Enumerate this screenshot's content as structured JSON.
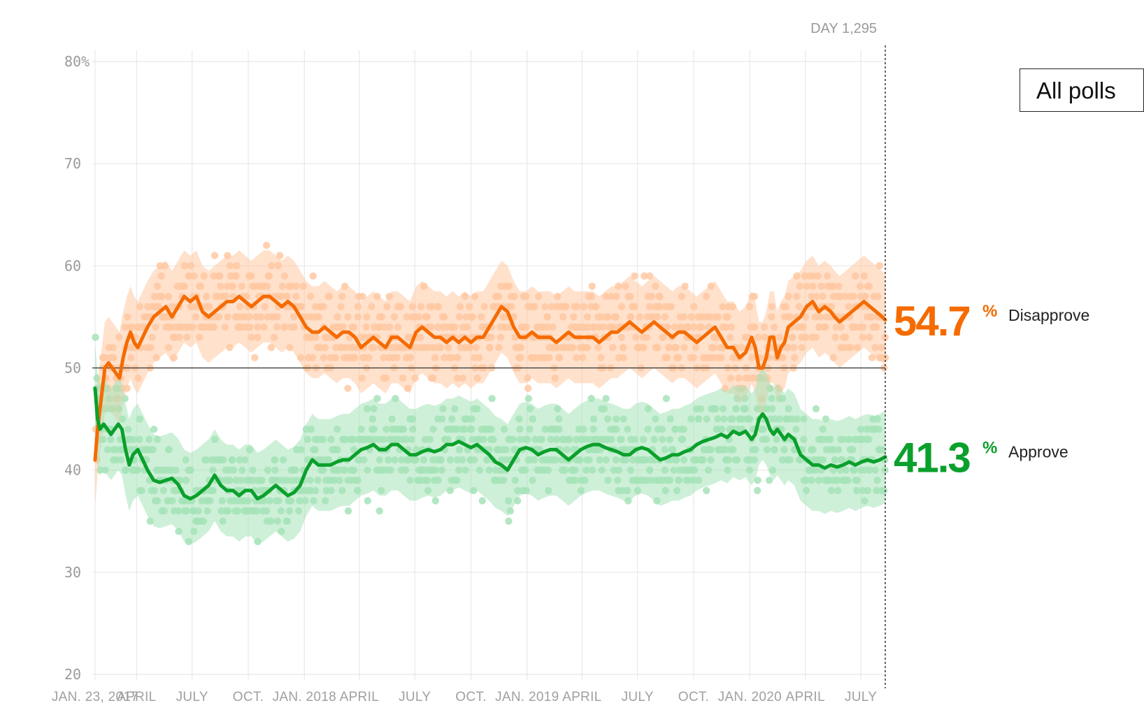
{
  "filter_button": {
    "label": "All polls"
  },
  "chart_data": {
    "type": "line",
    "title": "",
    "day_label": "DAY 1,295",
    "ylim": [
      20,
      80
    ],
    "y_ticks": [
      {
        "value": 20,
        "label": "20"
      },
      {
        "value": 30,
        "label": "30"
      },
      {
        "value": 40,
        "label": "40"
      },
      {
        "value": 50,
        "label": "50"
      },
      {
        "value": 60,
        "label": "60"
      },
      {
        "value": 70,
        "label": "70"
      },
      {
        "value": 80,
        "label": "80%"
      }
    ],
    "x_range_days": [
      0,
      1295
    ],
    "x_ticks": [
      {
        "day": 0,
        "label": "JAN. 23, 2017"
      },
      {
        "day": 68,
        "label": "APRIL"
      },
      {
        "day": 159,
        "label": "JULY"
      },
      {
        "day": 251,
        "label": "OCT."
      },
      {
        "day": 343,
        "label": "JAN. 2018"
      },
      {
        "day": 433,
        "label": "APRIL"
      },
      {
        "day": 524,
        "label": "JULY"
      },
      {
        "day": 616,
        "label": "OCT."
      },
      {
        "day": 708,
        "label": "JAN. 2019"
      },
      {
        "day": 798,
        "label": "APRIL"
      },
      {
        "day": 889,
        "label": "JULY"
      },
      {
        "day": 981,
        "label": "OCT."
      },
      {
        "day": 1073,
        "label": "JAN. 2020"
      },
      {
        "day": 1164,
        "label": "APRIL"
      },
      {
        "day": 1255,
        "label": "JULY"
      }
    ],
    "reference_line": 50,
    "series": [
      {
        "name": "Disapprove",
        "current": "54.7",
        "unit": "%",
        "color": "#f56b00",
        "light_color": "#ffc9a3",
        "band_halfwidth": 4.5,
        "points": [
          [
            0,
            41
          ],
          [
            4,
            44
          ],
          [
            8,
            46
          ],
          [
            12,
            48
          ],
          [
            16,
            50
          ],
          [
            22,
            50.5
          ],
          [
            28,
            50
          ],
          [
            34,
            49.5
          ],
          [
            40,
            49
          ],
          [
            46,
            51
          ],
          [
            52,
            52.5
          ],
          [
            58,
            53.5
          ],
          [
            64,
            52.5
          ],
          [
            70,
            52
          ],
          [
            78,
            53
          ],
          [
            86,
            54
          ],
          [
            96,
            55
          ],
          [
            106,
            55.5
          ],
          [
            116,
            56
          ],
          [
            126,
            55
          ],
          [
            136,
            56
          ],
          [
            146,
            57
          ],
          [
            156,
            56.5
          ],
          [
            166,
            57
          ],
          [
            176,
            55.5
          ],
          [
            186,
            55
          ],
          [
            196,
            55.5
          ],
          [
            206,
            56
          ],
          [
            216,
            56.5
          ],
          [
            226,
            56.5
          ],
          [
            236,
            57
          ],
          [
            246,
            56.5
          ],
          [
            256,
            56
          ],
          [
            266,
            56.5
          ],
          [
            276,
            57
          ],
          [
            286,
            57
          ],
          [
            296,
            56.5
          ],
          [
            306,
            56
          ],
          [
            316,
            56.5
          ],
          [
            326,
            56
          ],
          [
            336,
            55
          ],
          [
            346,
            54
          ],
          [
            356,
            53.5
          ],
          [
            366,
            53.5
          ],
          [
            376,
            54
          ],
          [
            386,
            53.5
          ],
          [
            396,
            53
          ],
          [
            406,
            53.5
          ],
          [
            416,
            53.5
          ],
          [
            426,
            53
          ],
          [
            436,
            52
          ],
          [
            446,
            52.5
          ],
          [
            456,
            53
          ],
          [
            466,
            52.5
          ],
          [
            476,
            52
          ],
          [
            486,
            53
          ],
          [
            496,
            53
          ],
          [
            506,
            52.5
          ],
          [
            516,
            52
          ],
          [
            526,
            53.5
          ],
          [
            536,
            54
          ],
          [
            546,
            53.5
          ],
          [
            556,
            53
          ],
          [
            566,
            53
          ],
          [
            576,
            52.5
          ],
          [
            586,
            53
          ],
          [
            596,
            52.5
          ],
          [
            606,
            53
          ],
          [
            616,
            52.5
          ],
          [
            626,
            53
          ],
          [
            636,
            53
          ],
          [
            646,
            54
          ],
          [
            656,
            55
          ],
          [
            666,
            56
          ],
          [
            676,
            55.5
          ],
          [
            686,
            54
          ],
          [
            696,
            53
          ],
          [
            706,
            53
          ],
          [
            716,
            53.5
          ],
          [
            726,
            53
          ],
          [
            736,
            53
          ],
          [
            746,
            53
          ],
          [
            756,
            52.5
          ],
          [
            766,
            53
          ],
          [
            776,
            53.5
          ],
          [
            786,
            53
          ],
          [
            796,
            53
          ],
          [
            806,
            53
          ],
          [
            816,
            53
          ],
          [
            826,
            52.5
          ],
          [
            836,
            53
          ],
          [
            846,
            53.5
          ],
          [
            856,
            53.5
          ],
          [
            866,
            54
          ],
          [
            876,
            54.5
          ],
          [
            886,
            54
          ],
          [
            896,
            53.5
          ],
          [
            906,
            54
          ],
          [
            916,
            54.5
          ],
          [
            926,
            54
          ],
          [
            936,
            53.5
          ],
          [
            946,
            53
          ],
          [
            956,
            53.5
          ],
          [
            966,
            53.5
          ],
          [
            976,
            53
          ],
          [
            986,
            52.5
          ],
          [
            996,
            53
          ],
          [
            1006,
            53.5
          ],
          [
            1016,
            54
          ],
          [
            1026,
            53
          ],
          [
            1036,
            52
          ],
          [
            1046,
            52
          ],
          [
            1056,
            51
          ],
          [
            1066,
            51.5
          ],
          [
            1076,
            53
          ],
          [
            1082,
            52
          ],
          [
            1088,
            50
          ],
          [
            1094,
            50
          ],
          [
            1100,
            51
          ],
          [
            1106,
            53
          ],
          [
            1112,
            53
          ],
          [
            1118,
            51
          ],
          [
            1124,
            52
          ],
          [
            1130,
            52.5
          ],
          [
            1136,
            54
          ],
          [
            1146,
            54.5
          ],
          [
            1156,
            55
          ],
          [
            1166,
            56
          ],
          [
            1176,
            56.5
          ],
          [
            1186,
            55.5
          ],
          [
            1196,
            56
          ],
          [
            1206,
            55.5
          ],
          [
            1212,
            55
          ],
          [
            1220,
            54.5
          ],
          [
            1230,
            55
          ],
          [
            1240,
            55.5
          ],
          [
            1250,
            56
          ],
          [
            1260,
            56.5
          ],
          [
            1270,
            56
          ],
          [
            1280,
            55.5
          ],
          [
            1290,
            55
          ],
          [
            1295,
            54.7
          ]
        ]
      },
      {
        "name": "Approve",
        "current": "41.3",
        "unit": "%",
        "color": "#0aa02b",
        "light_color": "#a6e3b8",
        "band_halfwidth": 4.5,
        "points": [
          [
            0,
            48
          ],
          [
            4,
            45
          ],
          [
            8,
            44
          ],
          [
            14,
            44.5
          ],
          [
            20,
            44
          ],
          [
            26,
            43.5
          ],
          [
            32,
            44
          ],
          [
            38,
            44.5
          ],
          [
            44,
            44
          ],
          [
            50,
            42
          ],
          [
            56,
            40.5
          ],
          [
            62,
            41.5
          ],
          [
            70,
            42
          ],
          [
            78,
            41
          ],
          [
            86,
            40
          ],
          [
            96,
            39
          ],
          [
            106,
            38.8
          ],
          [
            116,
            39
          ],
          [
            126,
            39.2
          ],
          [
            136,
            38.6
          ],
          [
            146,
            37.5
          ],
          [
            156,
            37.2
          ],
          [
            166,
            37.5
          ],
          [
            176,
            38
          ],
          [
            186,
            38.5
          ],
          [
            196,
            39.5
          ],
          [
            206,
            38.5
          ],
          [
            216,
            38
          ],
          [
            226,
            38
          ],
          [
            236,
            37.5
          ],
          [
            246,
            38
          ],
          [
            256,
            38
          ],
          [
            266,
            37.2
          ],
          [
            276,
            37.5
          ],
          [
            286,
            38
          ],
          [
            296,
            38.5
          ],
          [
            306,
            38
          ],
          [
            316,
            37.5
          ],
          [
            326,
            37.8
          ],
          [
            336,
            38.5
          ],
          [
            346,
            40
          ],
          [
            356,
            41
          ],
          [
            366,
            40.5
          ],
          [
            376,
            40.5
          ],
          [
            386,
            40.5
          ],
          [
            396,
            40.8
          ],
          [
            406,
            41
          ],
          [
            416,
            41
          ],
          [
            426,
            41.5
          ],
          [
            436,
            42
          ],
          [
            446,
            42.2
          ],
          [
            456,
            42.5
          ],
          [
            466,
            42
          ],
          [
            476,
            42
          ],
          [
            486,
            42.5
          ],
          [
            496,
            42.5
          ],
          [
            506,
            42
          ],
          [
            516,
            41.5
          ],
          [
            526,
            41.5
          ],
          [
            536,
            41.8
          ],
          [
            546,
            42
          ],
          [
            556,
            41.8
          ],
          [
            566,
            42
          ],
          [
            576,
            42.5
          ],
          [
            586,
            42.5
          ],
          [
            596,
            42.8
          ],
          [
            606,
            42.5
          ],
          [
            616,
            42.2
          ],
          [
            626,
            42.5
          ],
          [
            636,
            42
          ],
          [
            646,
            41.5
          ],
          [
            656,
            40.8
          ],
          [
            666,
            40.5
          ],
          [
            676,
            40
          ],
          [
            686,
            41
          ],
          [
            696,
            42
          ],
          [
            706,
            42.2
          ],
          [
            716,
            42
          ],
          [
            726,
            41.5
          ],
          [
            736,
            41.8
          ],
          [
            746,
            42
          ],
          [
            756,
            42
          ],
          [
            766,
            41.5
          ],
          [
            776,
            41
          ],
          [
            786,
            41.5
          ],
          [
            796,
            42
          ],
          [
            806,
            42.3
          ],
          [
            816,
            42.5
          ],
          [
            826,
            42.5
          ],
          [
            836,
            42.2
          ],
          [
            846,
            42
          ],
          [
            856,
            41.8
          ],
          [
            866,
            41.5
          ],
          [
            876,
            41.5
          ],
          [
            886,
            42
          ],
          [
            896,
            42.2
          ],
          [
            906,
            42
          ],
          [
            916,
            41.5
          ],
          [
            926,
            41
          ],
          [
            936,
            41.2
          ],
          [
            946,
            41.5
          ],
          [
            956,
            41.5
          ],
          [
            966,
            41.8
          ],
          [
            976,
            42
          ],
          [
            986,
            42.5
          ],
          [
            996,
            42.8
          ],
          [
            1006,
            43
          ],
          [
            1016,
            43.2
          ],
          [
            1026,
            43.5
          ],
          [
            1036,
            43.2
          ],
          [
            1046,
            43.8
          ],
          [
            1056,
            43.5
          ],
          [
            1066,
            43.8
          ],
          [
            1076,
            43
          ],
          [
            1082,
            43.5
          ],
          [
            1088,
            45
          ],
          [
            1094,
            45.5
          ],
          [
            1100,
            45
          ],
          [
            1106,
            44
          ],
          [
            1112,
            43.5
          ],
          [
            1118,
            44
          ],
          [
            1124,
            43.5
          ],
          [
            1130,
            43
          ],
          [
            1136,
            43.5
          ],
          [
            1146,
            43
          ],
          [
            1156,
            41.5
          ],
          [
            1166,
            41
          ],
          [
            1176,
            40.5
          ],
          [
            1186,
            40.5
          ],
          [
            1196,
            40.2
          ],
          [
            1206,
            40.5
          ],
          [
            1216,
            40.3
          ],
          [
            1226,
            40.5
          ],
          [
            1236,
            40.8
          ],
          [
            1246,
            40.5
          ],
          [
            1256,
            40.8
          ],
          [
            1266,
            41
          ],
          [
            1276,
            40.8
          ],
          [
            1286,
            41
          ],
          [
            1295,
            41.3
          ]
        ]
      }
    ]
  }
}
